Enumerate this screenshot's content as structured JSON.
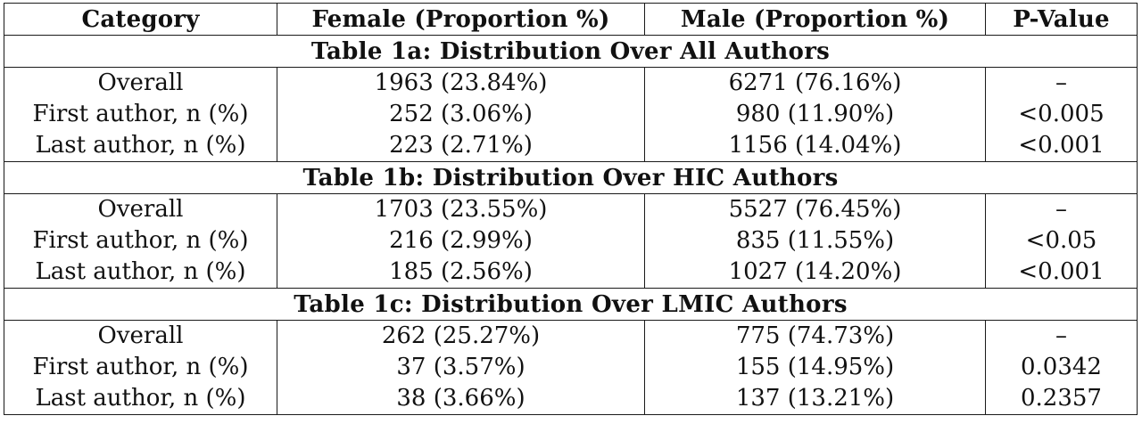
{
  "headers": [
    "Category",
    "Female (Proportion %)",
    "Male (Proportion %)",
    "P-Value"
  ],
  "sections": [
    {
      "title": "Table 1a: Distribution Over All Authors",
      "rows": [
        [
          "Overall",
          "1963 (23.84%)",
          "6271 (76.16%)",
          "–"
        ],
        [
          "First author, n (%)",
          "252 (3.06%)",
          "980 (11.90%)",
          "<0.005"
        ],
        [
          "Last author, n (%)",
          "223 (2.71%)",
          "1156 (14.04%)",
          "<0.001"
        ]
      ]
    },
    {
      "title": "Table 1b: Distribution Over HIC Authors",
      "rows": [
        [
          "Overall",
          "1703 (23.55%)",
          "5527 (76.45%)",
          "–"
        ],
        [
          "First author, n (%)",
          "216 (2.99%)",
          "835 (11.55%)",
          "<0.05"
        ],
        [
          "Last author, n (%)",
          "185 (2.56%)",
          "1027 (14.20%)",
          "<0.001"
        ]
      ]
    },
    {
      "title": "Table 1c: Distribution Over LMIC Authors",
      "rows": [
        [
          "Overall",
          "262 (25.27%)",
          "775 (74.73%)",
          "–"
        ],
        [
          "First author, n (%)",
          "37 (3.57%)",
          "155 (14.95%)",
          "0.0342"
        ],
        [
          "Last author, n (%)",
          "38 (3.66%)",
          "137 (13.21%)",
          "0.2357"
        ]
      ]
    }
  ]
}
